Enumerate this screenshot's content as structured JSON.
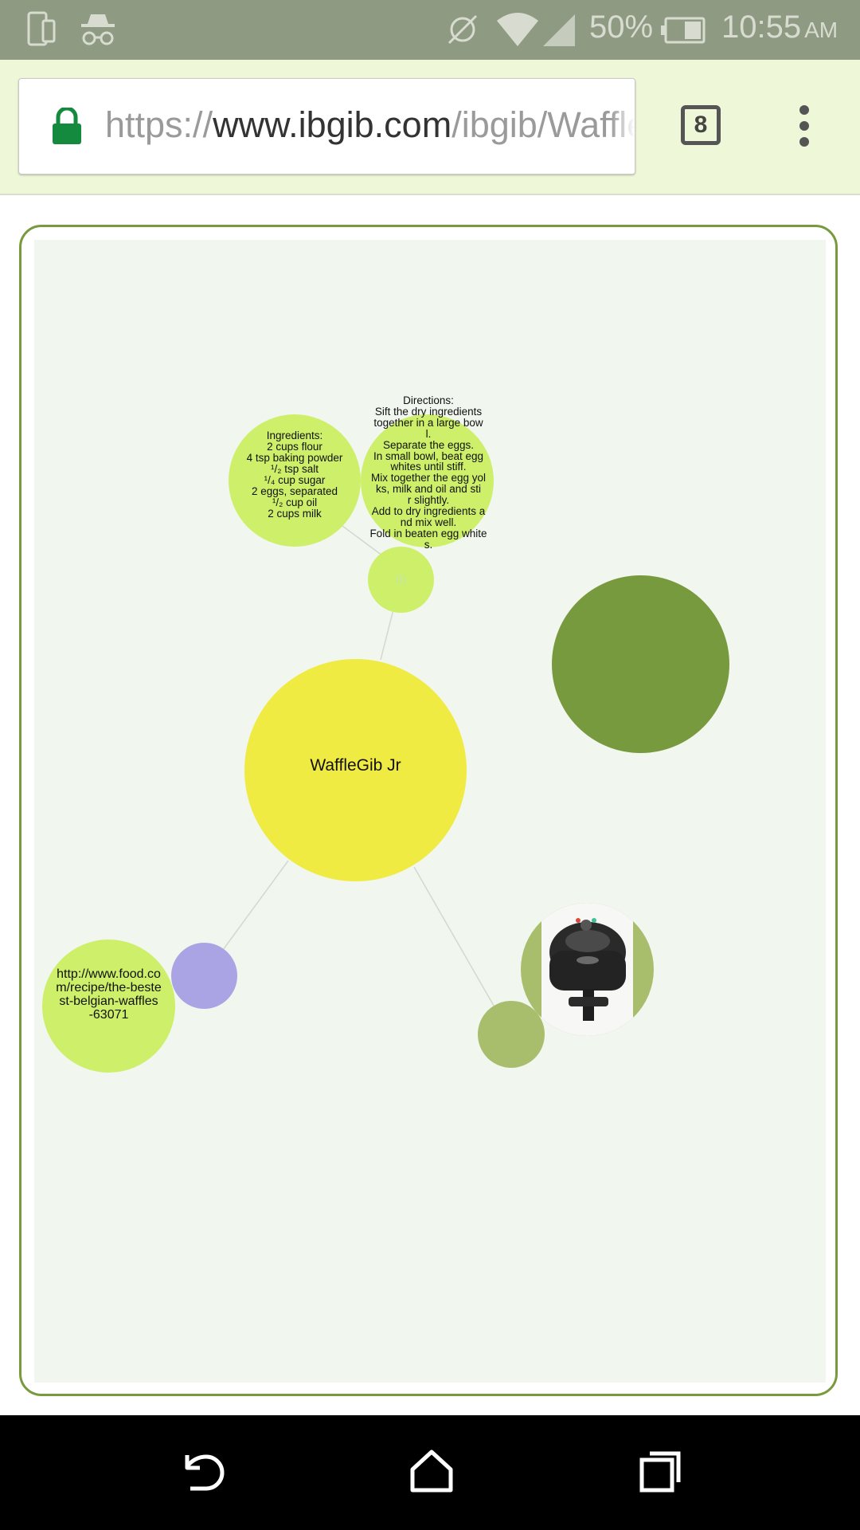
{
  "status_bar": {
    "battery": "50%",
    "time": "10:55",
    "ampm": "AM",
    "icons": [
      "phone-icon",
      "incognito-icon",
      "sync-off-icon",
      "wifi-icon",
      "signal-icon",
      "battery-icon"
    ]
  },
  "browser": {
    "url_scheme": "https://",
    "url_host": "www.ibgib.com",
    "url_path": "/ibgib/Waffle",
    "tab_count": "8",
    "icons": [
      "lock-icon",
      "menu-icon"
    ]
  },
  "graph": {
    "main_node": "WaffleGib Jr",
    "ingredients": "Ingredients:\n2 cups flour\n4 tsp baking powder\n¹/₂ tsp salt\n¹/₄ cup sugar\n2 eggs, separated\n¹/₂ cup oil\n2 cups milk",
    "directions": "Directions:\nSift the dry ingredients\ntogether in a large bow\nl.\nSeparate the eggs.\nIn small bowl, beat egg\nwhites until stiff.\nMix together the egg yol\nks, milk and oil and sti\nr slightly.\nAdd to dry ingredients a\nnd mix well.\nFold in beaten egg white\ns.",
    "link": "http://www.food.co\nm/recipe/the-beste\nst-belgian-waffles\n-63071",
    "hub_label": "ib",
    "colors": {
      "main": "#f0eb42",
      "leaf": "#cdef6a",
      "dark": "#789a3e",
      "muted": "#a8be6c",
      "link_hub": "#aba4e4",
      "canvas": "#f1f6ee",
      "border": "#789a3e"
    }
  }
}
